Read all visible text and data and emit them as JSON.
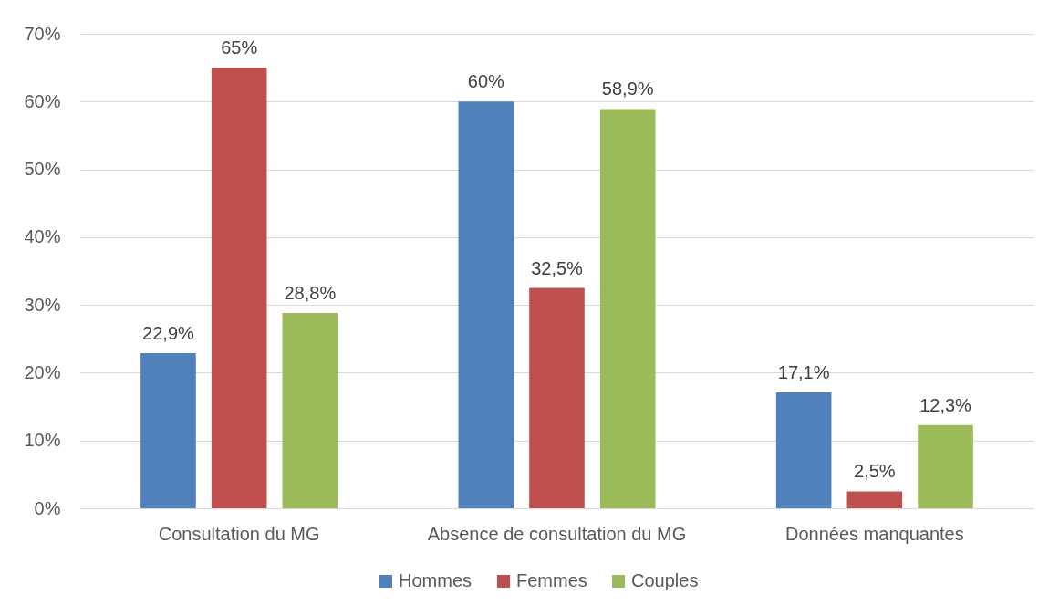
{
  "chart_data": {
    "type": "bar",
    "categories": [
      "Consultation du MG",
      "Absence de consultation du MG",
      "Données manquantes"
    ],
    "series": [
      {
        "name": "Hommes",
        "color": "#4f81bd",
        "values": [
          22.9,
          60,
          17.1
        ],
        "value_labels": [
          "22,9%",
          "60%",
          "17,1%"
        ]
      },
      {
        "name": "Femmes",
        "color": "#c0504d",
        "values": [
          65,
          32.5,
          2.5
        ],
        "value_labels": [
          "65%",
          "32,5%",
          "2,5%"
        ]
      },
      {
        "name": "Couples",
        "color": "#9bbb59",
        "values": [
          28.8,
          58.9,
          12.3
        ],
        "value_labels": [
          "28,8%",
          "58,9%",
          "12,3%"
        ]
      }
    ],
    "ylim": [
      0,
      70
    ],
    "yticks": [
      {
        "value": 0,
        "label": "0%"
      },
      {
        "value": 10,
        "label": "10%"
      },
      {
        "value": 20,
        "label": "20%"
      },
      {
        "value": 30,
        "label": "30%"
      },
      {
        "value": 40,
        "label": "40%"
      },
      {
        "value": 50,
        "label": "50%"
      },
      {
        "value": 60,
        "label": "60%"
      },
      {
        "value": 70,
        "label": "70%"
      }
    ],
    "grid": "y",
    "legend": "bottom"
  }
}
